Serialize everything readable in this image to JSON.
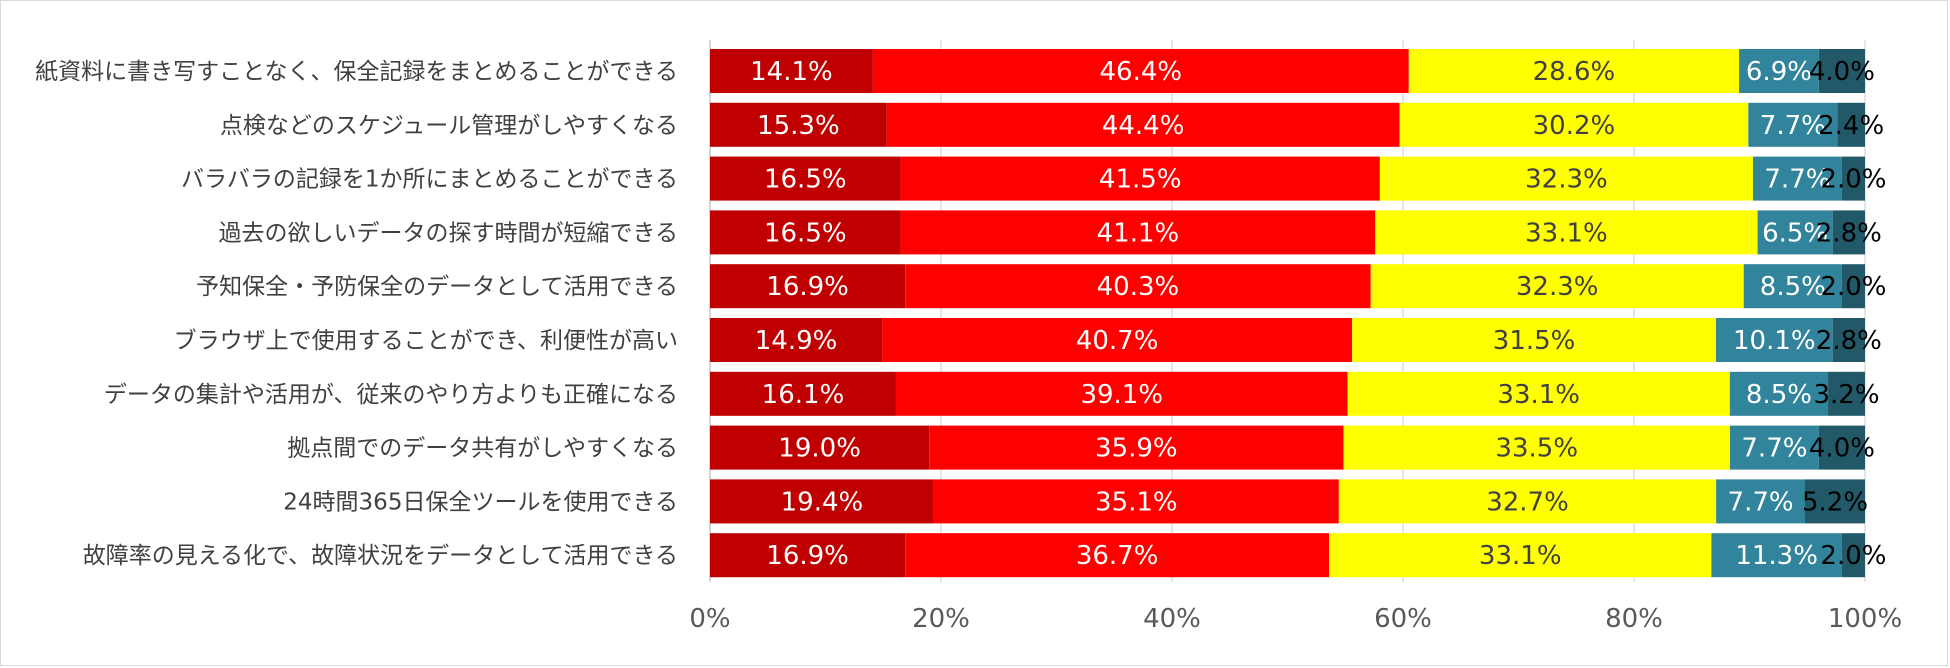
{
  "chart_data": {
    "type": "bar",
    "orientation": "horizontal",
    "stacked": true,
    "percent_stacked": true,
    "categories": [
      "紙資料に書き写すことなく、保全記録をまとめることができる",
      "点検などのスケジュール管理がしやすくなる",
      "バラバラの記録を1か所にまとめることができる",
      "過去の欲しいデータの探す時間が短縮できる",
      "予知保全・予防保全のデータとして活用できる",
      "ブラウザ上で使用することができ、利便性が高い",
      "データの集計や活用が、従来のやり方よりも正確になる",
      "拠点間でのデータ共有がしやすくなる",
      "24時間365日保全ツールを使用できる",
      "故障率の見える化で、故障状況をデータとして活用できる"
    ],
    "series": [
      {
        "name": "series1",
        "color": "#c00000",
        "values": [
          14.1,
          15.3,
          16.5,
          16.5,
          16.9,
          14.9,
          16.1,
          19.0,
          19.4,
          16.9
        ]
      },
      {
        "name": "series2",
        "color": "#ff0000",
        "values": [
          46.4,
          44.4,
          41.5,
          41.1,
          40.3,
          40.7,
          39.1,
          35.9,
          35.1,
          36.7
        ]
      },
      {
        "name": "series3",
        "color": "#ffff00",
        "values": [
          28.6,
          30.2,
          32.3,
          33.1,
          32.3,
          31.5,
          33.1,
          33.5,
          32.7,
          33.1
        ]
      },
      {
        "name": "series4",
        "color": "#31849b",
        "values": [
          6.9,
          7.7,
          7.7,
          6.5,
          8.5,
          10.1,
          8.5,
          7.7,
          7.7,
          11.3
        ]
      },
      {
        "name": "series5",
        "color": "#215968",
        "values": [
          4.0,
          2.4,
          2.0,
          2.8,
          2.0,
          2.8,
          3.2,
          4.0,
          5.2,
          2.0
        ]
      }
    ],
    "data_labels": [
      [
        "14.1%",
        "46.4%",
        "28.6%",
        "6.9%",
        "4.0%"
      ],
      [
        "15.3%",
        "44.4%",
        "30.2%",
        "7.7%",
        "2.4%"
      ],
      [
        "16.5%",
        "41.5%",
        "32.3%",
        "7.7%",
        "2.0%"
      ],
      [
        "16.5%",
        "41.1%",
        "33.1%",
        "6.5%",
        "2.8%"
      ],
      [
        "16.9%",
        "40.3%",
        "32.3%",
        "8.5%",
        "2.0%"
      ],
      [
        "14.9%",
        "40.7%",
        "31.5%",
        "10.1%",
        "2.8%"
      ],
      [
        "16.1%",
        "39.1%",
        "33.1%",
        "8.5%",
        "3.2%"
      ],
      [
        "19.0%",
        "35.9%",
        "33.5%",
        "7.7%",
        "4.0%"
      ],
      [
        "19.4%",
        "35.1%",
        "32.7%",
        "7.7%",
        "5.2%"
      ],
      [
        "16.9%",
        "36.7%",
        "33.1%",
        "11.3%",
        "2.0%"
      ]
    ],
    "label_colors": [
      "#ffffff",
      "#ffffff",
      "#404040",
      "#ffffff",
      "#000000"
    ],
    "xlim": [
      0,
      100
    ],
    "xticks": [
      "0%",
      "20%",
      "40%",
      "60%",
      "80%",
      "100%"
    ],
    "title": "",
    "xlabel": "",
    "ylabel": "",
    "grid": true,
    "legend": "none"
  }
}
